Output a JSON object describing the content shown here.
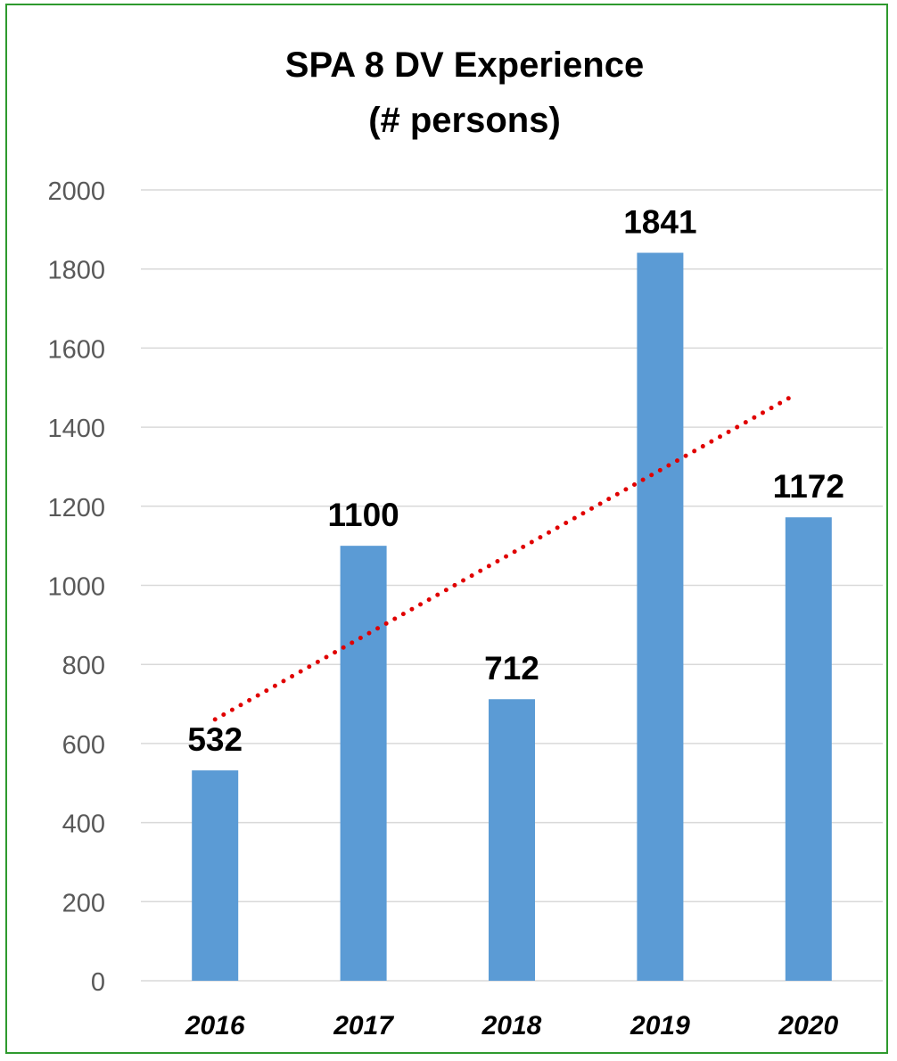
{
  "chart_data": {
    "type": "bar",
    "title_line1": "SPA 8 DV Experience",
    "title_line2": "(# persons)",
    "categories": [
      "2016",
      "2017",
      "2018",
      "2019",
      "2020"
    ],
    "values": [
      532,
      1100,
      712,
      1841,
      1172
    ],
    "ylim": [
      0,
      2000
    ],
    "yticks": [
      "0",
      "200",
      "400",
      "600",
      "800",
      "1000",
      "1200",
      "1400",
      "1600",
      "1800",
      "2000"
    ],
    "grid": true,
    "trendline": {
      "type": "linear",
      "style": "dotted",
      "color": "#e00000",
      "start": 661,
      "end": 1476
    },
    "colors": {
      "bar": "#5b9bd5",
      "grid": "#d9d9d9",
      "frame": "#2e9a2e"
    }
  }
}
